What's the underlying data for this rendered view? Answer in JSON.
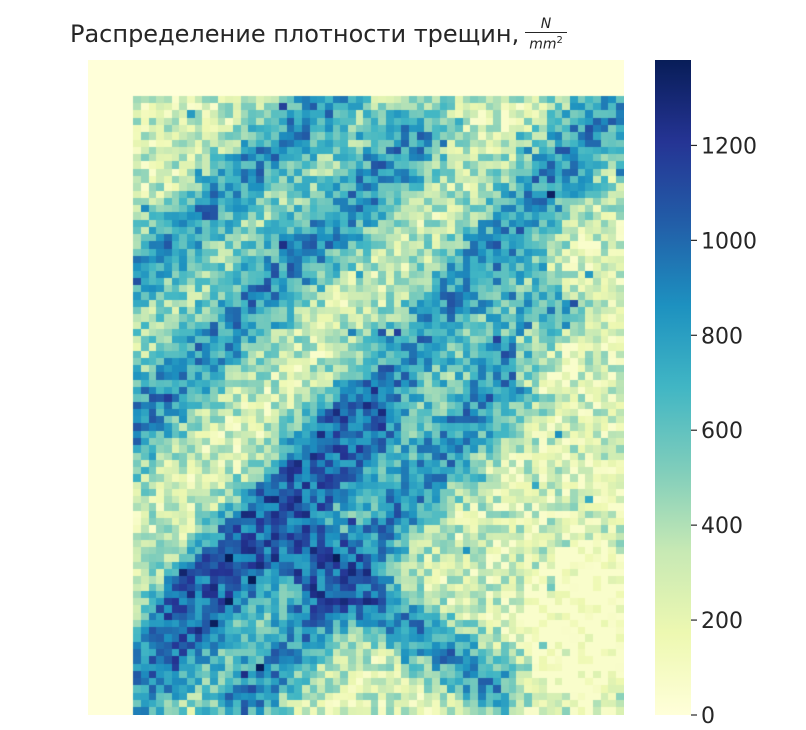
{
  "title": "Распределение плотности трещин,",
  "title_unit_numerator": "N",
  "title_unit_denominator": "mm",
  "title_unit_exponent": "2",
  "chart_data": {
    "type": "heatmap",
    "title": "Распределение плотности трещин, N/mm²",
    "colormap": "YlGnBu",
    "colormap_stops": [
      "#ffffd9",
      "#edf8b1",
      "#c7e9b4",
      "#7fcdbb",
      "#41b6c4",
      "#1d91c0",
      "#225ea8",
      "#253494",
      "#081d58"
    ],
    "value_range": [
      0,
      1380
    ],
    "colorbar_ticks": [
      0,
      200,
      400,
      600,
      800,
      1000,
      1200
    ],
    "colorbar_tick_labels": [
      "0",
      "200",
      "400",
      "600",
      "800",
      "1000",
      "1200"
    ],
    "grid_shape": [
      90,
      70
    ],
    "grid": false,
    "description_of_pattern": "Zero-valued border on left and top; dense diagonal crack bands running from lower-left to upper-right with scattered high-density cells, values mostly between 200 and 1300."
  }
}
